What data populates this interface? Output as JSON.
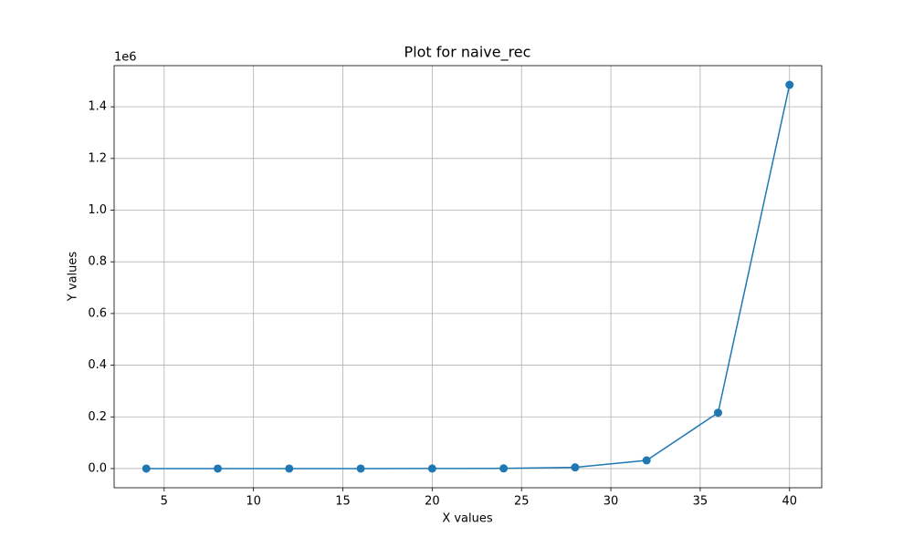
{
  "chart_data": {
    "type": "line",
    "title": "Plot for naive_rec",
    "x_label": "X values",
    "y_label": "Y values",
    "y_offset_label": "1e6",
    "x": [
      4,
      8,
      12,
      16,
      20,
      24,
      28,
      32,
      36,
      40
    ],
    "series": [
      {
        "color": "#1f77b4",
        "values": [
          0,
          0,
          2,
          14,
          98,
          670,
          4600,
          31600,
          216000,
          1485000
        ]
      }
    ],
    "xlim": [
      2.2,
      41.8
    ],
    "xticks": [
      5,
      10,
      15,
      20,
      25,
      30,
      35,
      40
    ],
    "ylim": [
      -74250,
      1559250
    ],
    "yticks": [
      {
        "value": 0,
        "label": "0.0"
      },
      {
        "value": 200000,
        "label": "0.2"
      },
      {
        "value": 400000,
        "label": "0.4"
      },
      {
        "value": 600000,
        "label": "0.6"
      },
      {
        "value": 800000,
        "label": "0.8"
      },
      {
        "value": 1000000,
        "label": "1.0"
      },
      {
        "value": 1200000,
        "label": "1.2"
      },
      {
        "value": 1400000,
        "label": "1.4"
      }
    ],
    "grid": true,
    "markers": true
  }
}
